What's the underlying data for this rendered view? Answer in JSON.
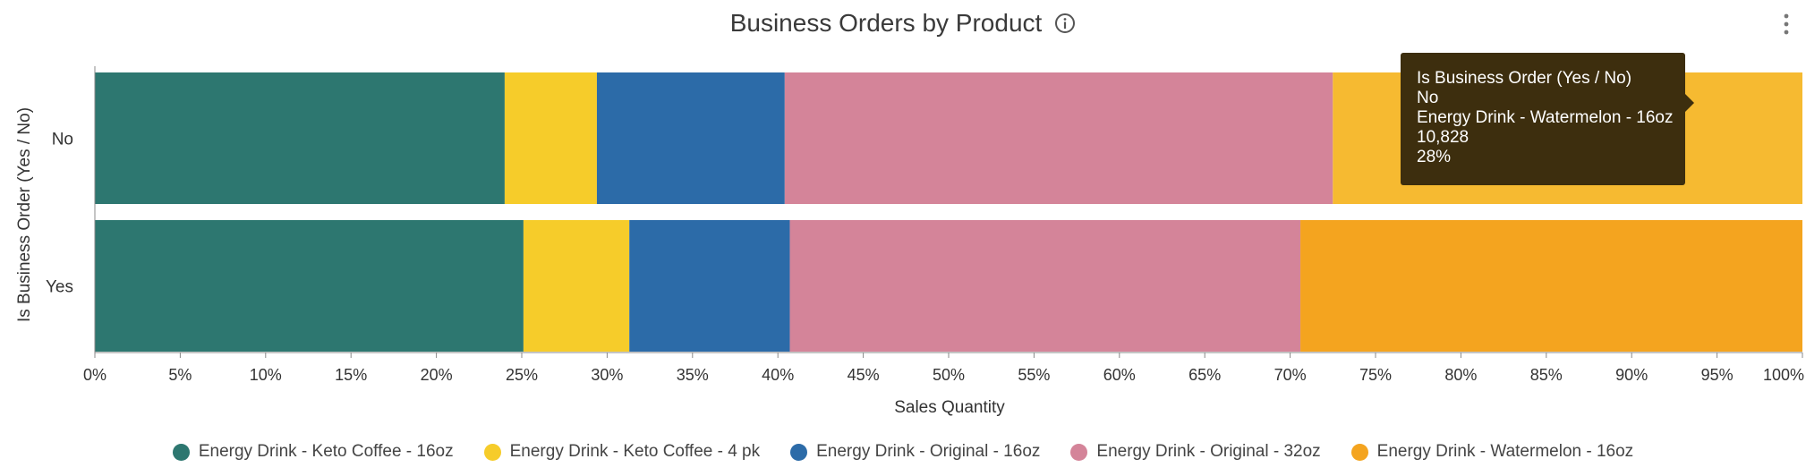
{
  "header": {
    "title": "Business Orders by Product",
    "info_icon": "info-icon",
    "menu_icon": "more-vertical-icon"
  },
  "chart_data": {
    "type": "bar",
    "orientation": "horizontal",
    "stacked": "percent",
    "title": "Business Orders by Product",
    "xlabel": "Sales Quantity",
    "ylabel": "Is Business Order (Yes / No)",
    "xlim": [
      0,
      100
    ],
    "x_ticks": [
      "0%",
      "5%",
      "10%",
      "15%",
      "20%",
      "25%",
      "30%",
      "35%",
      "40%",
      "45%",
      "50%",
      "55%",
      "60%",
      "65%",
      "70%",
      "75%",
      "80%",
      "85%",
      "90%",
      "95%",
      "100%"
    ],
    "categories": [
      "No",
      "Yes"
    ],
    "series": [
      {
        "name": "Energy Drink - Keto Coffee - 16oz",
        "color": "#2d7770",
        "values": [
          24.0,
          25.1
        ]
      },
      {
        "name": "Energy Drink - Keto Coffee - 4 pk",
        "color": "#f6cc2a",
        "values": [
          5.4,
          6.2
        ]
      },
      {
        "name": "Energy Drink - Original - 16oz",
        "color": "#2c6ba8",
        "values": [
          11.0,
          9.4
        ]
      },
      {
        "name": "Energy Drink - Original - 32oz",
        "color": "#d48499",
        "values": [
          32.1,
          29.9
        ]
      },
      {
        "name": "Energy Drink - Watermelon - 16oz",
        "color": "#f4a41f",
        "values": [
          27.5,
          29.4
        ]
      }
    ],
    "highlight": {
      "category": "No",
      "series": "Energy Drink - Watermelon - 16oz",
      "color": "#f6ba31"
    },
    "grid": false,
    "legend_position": "bottom"
  },
  "tooltip": {
    "line1": "Is Business Order (Yes / No)",
    "line2": "No",
    "line3": "Energy Drink - Watermelon - 16oz",
    "line4": "10,828",
    "line5": "28%"
  }
}
